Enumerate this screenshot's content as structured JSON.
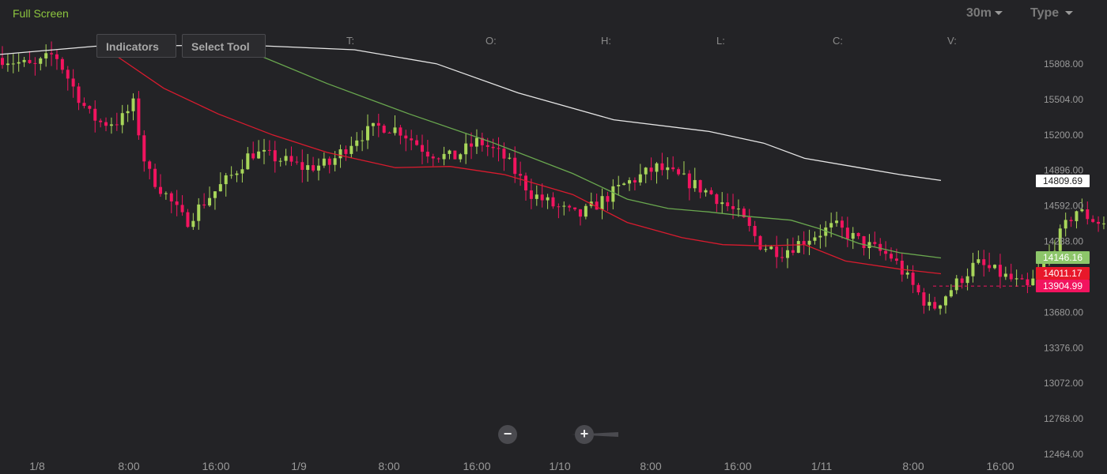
{
  "toolbar": {
    "full_screen_label": "Full Screen",
    "interval_label": "30m",
    "type_label": "Type"
  },
  "overlay": {
    "indicators_label": "Indicators",
    "select_tool_label": "Select Tool",
    "ohlc_labels": [
      "T:",
      "O:",
      "H:",
      "L:",
      "C:",
      "V:"
    ]
  },
  "zoom": {
    "minus_symbol": "−",
    "plus_symbol": "+"
  },
  "chart_data": {
    "type": "candlestick",
    "y_ticks": [
      "15808.00",
      "15504.00",
      "15200.00",
      "14896.00",
      "14592.00",
      "14288.00",
      "13984.00",
      "13680.00",
      "13376.00",
      "13072.00",
      "12768.00",
      "12464.00"
    ],
    "x_ticks": [
      "1/8",
      "8:00",
      "16:00",
      "1/9",
      "8:00",
      "16:00",
      "1/10",
      "8:00",
      "16:00",
      "1/11",
      "8:00",
      "16:00"
    ],
    "ylim": [
      12464,
      16010
    ],
    "x_range": [
      0,
      6.9
    ],
    "grid": false,
    "colors": {
      "up": "#a8d65a",
      "down": "#f2145f",
      "ma_slow": "#e6e6e6",
      "ma_mid": "#6aa84f",
      "ma_fast": "#d91b2e",
      "background": "#232326"
    },
    "price_badges": [
      {
        "value": "14809.69",
        "price": 14809.69,
        "bg": "#ffffff",
        "fg": "#222222"
      },
      {
        "value": "14146.16",
        "price": 14146.16,
        "bg": "#8dc66a",
        "fg": "#ffffff"
      },
      {
        "value": "14011.17",
        "price": 14011.17,
        "bg": "#e8182a",
        "fg": "#ffffff"
      },
      {
        "value": "13904.99",
        "price": 13904.99,
        "bg": "#f2145f",
        "fg": "#ffffff"
      }
    ],
    "last_price": 13904.99,
    "series": [
      {
        "name": "",
        "color": "#e6e6e6",
        "x": [
          0,
          0.7,
          1.8,
          2.6,
          3.2,
          3.8,
          4.5,
          5.2,
          5.6,
          5.9,
          6.3,
          6.6,
          6.9
        ],
        "y": [
          15890,
          15960,
          15970,
          15930,
          15810,
          15560,
          15330,
          15230,
          15130,
          15000,
          14920,
          14860,
          14810
        ]
      },
      {
        "name": "",
        "color": "#6aa84f",
        "x": [
          1.8,
          2.4,
          3.0,
          3.6,
          4.2,
          4.6,
          4.9,
          5.2,
          5.5,
          5.8,
          6.0,
          6.3,
          6.6,
          6.9
        ],
        "y": [
          15930,
          15640,
          15380,
          15140,
          14870,
          14650,
          14570,
          14540,
          14500,
          14470,
          14400,
          14270,
          14190,
          14146
        ]
      },
      {
        "name": "",
        "color": "#d91b2e",
        "x": [
          0.85,
          1.2,
          1.6,
          2.0,
          2.4,
          2.9,
          3.3,
          3.7,
          4.2,
          4.6,
          5.0,
          5.3,
          5.6,
          5.9,
          6.2,
          6.6,
          6.9
        ],
        "y": [
          15880,
          15600,
          15380,
          15200,
          15050,
          14920,
          14930,
          14860,
          14690,
          14450,
          14320,
          14260,
          14250,
          14260,
          14120,
          14050,
          14011
        ]
      }
    ],
    "ohlc_x_ticks_per_day": 48
  }
}
